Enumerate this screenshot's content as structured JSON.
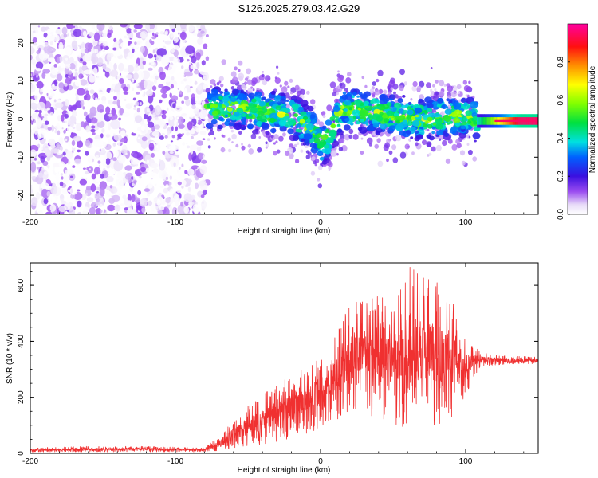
{
  "title": "S126.2025.279.03.42.G29",
  "chart_data": [
    {
      "type": "heatmap",
      "name": "spectrogram",
      "xlabel": "Height of straight line (km)",
      "ylabel": "Frequency (Hz)",
      "xlim": [
        -200,
        150
      ],
      "ylim": [
        -25,
        25
      ],
      "xticks": [
        -200,
        -100,
        0,
        100
      ],
      "yticks": [
        -20,
        -10,
        0,
        10,
        20
      ],
      "colorbar": {
        "label": "Normalized spectral amplitude",
        "range": [
          0,
          1
        ],
        "ticks": [
          "0.0",
          "0.2",
          "0.4",
          "0.6",
          "0.8"
        ],
        "tick_values": [
          0.0,
          0.2,
          0.4,
          0.6,
          0.8
        ]
      },
      "regions": [
        {
          "x_range": [
            -200,
            -78
          ],
          "freq_range": [
            -25,
            25
          ],
          "description": "noise",
          "amplitude_range": [
            0.0,
            0.15
          ]
        },
        {
          "x_range": [
            -78,
            108
          ],
          "freq_range": [
            -12,
            12
          ],
          "description": "signal",
          "amplitude_range": [
            0.05,
            0.7
          ]
        },
        {
          "x_range": [
            108,
            150
          ],
          "freq_range": [
            -1.5,
            0.5
          ],
          "description": "strong tone",
          "amplitude_range": [
            0.4,
            0.95
          ]
        }
      ],
      "signal_center_track": {
        "x": [
          -78,
          -60,
          -40,
          -20,
          -5,
          0,
          5,
          15,
          30,
          50,
          70,
          90,
          100,
          110,
          130,
          150
        ],
        "freq": [
          3,
          3,
          2,
          1,
          -3,
          -7,
          -5,
          3,
          2,
          1,
          0,
          1,
          1,
          -1,
          -1,
          -1
        ]
      }
    },
    {
      "type": "line",
      "name": "snr",
      "xlabel": "Height of straight line (km)",
      "ylabel": "SNR (10 * v/v)",
      "xlim": [
        -200,
        150
      ],
      "ylim": [
        0,
        680
      ],
      "xticks": [
        -200,
        -100,
        0,
        100
      ],
      "yticks": [
        0,
        200,
        400,
        600
      ],
      "color": "#f03030",
      "envelope": [
        {
          "x": -200,
          "lo": 5,
          "hi": 20
        },
        {
          "x": -160,
          "lo": 5,
          "hi": 25
        },
        {
          "x": -120,
          "lo": 5,
          "hi": 25
        },
        {
          "x": -80,
          "lo": 5,
          "hi": 20
        },
        {
          "x": -70,
          "lo": 10,
          "hi": 60
        },
        {
          "x": -55,
          "lo": 20,
          "hi": 150
        },
        {
          "x": -40,
          "lo": 30,
          "hi": 210
        },
        {
          "x": -20,
          "lo": 50,
          "hi": 280
        },
        {
          "x": -5,
          "lo": 80,
          "hi": 330
        },
        {
          "x": 5,
          "lo": 100,
          "hi": 360
        },
        {
          "x": 20,
          "lo": 140,
          "hi": 560
        },
        {
          "x": 35,
          "lo": 120,
          "hi": 590
        },
        {
          "x": 50,
          "lo": 100,
          "hi": 620
        },
        {
          "x": 62,
          "lo": 80,
          "hi": 680
        },
        {
          "x": 75,
          "lo": 100,
          "hi": 640
        },
        {
          "x": 90,
          "lo": 110,
          "hi": 560
        },
        {
          "x": 100,
          "lo": 200,
          "hi": 430
        },
        {
          "x": 110,
          "lo": 310,
          "hi": 360
        },
        {
          "x": 130,
          "lo": 318,
          "hi": 348
        },
        {
          "x": 150,
          "lo": 320,
          "hi": 345
        }
      ]
    }
  ]
}
